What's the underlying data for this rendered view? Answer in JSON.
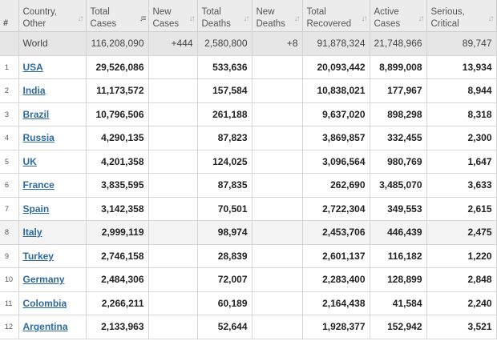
{
  "headers": {
    "num": "#",
    "country": [
      "Country,",
      "Other"
    ],
    "total_cases": [
      "Total",
      "Cases"
    ],
    "new_cases": [
      "New",
      "Cases"
    ],
    "total_deaths": [
      "Total",
      "Deaths"
    ],
    "new_deaths": [
      "New",
      "Deaths"
    ],
    "total_recovered": [
      "Total",
      "Recovered"
    ],
    "active_cases": [
      "Active",
      "Cases"
    ],
    "serious": [
      "Serious,",
      "Critical"
    ]
  },
  "world": {
    "country": "World",
    "total_cases": "116,208,090",
    "new_cases": "+444",
    "total_deaths": "2,580,800",
    "new_deaths": "+8",
    "total_recovered": "91,878,324",
    "active_cases": "21,748,966",
    "serious": "89,747"
  },
  "rows": [
    {
      "rank": "1",
      "country": "USA",
      "total_cases": "29,526,086",
      "new_cases": "",
      "total_deaths": "533,636",
      "new_deaths": "",
      "total_recovered": "20,093,442",
      "active_cases": "8,899,008",
      "serious": "13,934"
    },
    {
      "rank": "2",
      "country": "India",
      "total_cases": "11,173,572",
      "new_cases": "",
      "total_deaths": "157,584",
      "new_deaths": "",
      "total_recovered": "10,838,021",
      "active_cases": "177,967",
      "serious": "8,944"
    },
    {
      "rank": "3",
      "country": "Brazil",
      "total_cases": "10,796,506",
      "new_cases": "",
      "total_deaths": "261,188",
      "new_deaths": "",
      "total_recovered": "9,637,020",
      "active_cases": "898,298",
      "serious": "8,318"
    },
    {
      "rank": "4",
      "country": "Russia",
      "total_cases": "4,290,135",
      "new_cases": "",
      "total_deaths": "87,823",
      "new_deaths": "",
      "total_recovered": "3,869,857",
      "active_cases": "332,455",
      "serious": "2,300"
    },
    {
      "rank": "5",
      "country": "UK",
      "total_cases": "4,201,358",
      "new_cases": "",
      "total_deaths": "124,025",
      "new_deaths": "",
      "total_recovered": "3,096,564",
      "active_cases": "980,769",
      "serious": "1,647"
    },
    {
      "rank": "6",
      "country": "France",
      "total_cases": "3,835,595",
      "new_cases": "",
      "total_deaths": "87,835",
      "new_deaths": "",
      "total_recovered": "262,690",
      "active_cases": "3,485,070",
      "serious": "3,633"
    },
    {
      "rank": "7",
      "country": "Spain",
      "total_cases": "3,142,358",
      "new_cases": "",
      "total_deaths": "70,501",
      "new_deaths": "",
      "total_recovered": "2,722,304",
      "active_cases": "349,553",
      "serious": "2,615"
    },
    {
      "rank": "8",
      "country": "Italy",
      "total_cases": "2,999,119",
      "new_cases": "",
      "total_deaths": "98,974",
      "new_deaths": "",
      "total_recovered": "2,453,706",
      "active_cases": "446,439",
      "serious": "2,475"
    },
    {
      "rank": "9",
      "country": "Turkey",
      "total_cases": "2,746,158",
      "new_cases": "",
      "total_deaths": "28,839",
      "new_deaths": "",
      "total_recovered": "2,601,137",
      "active_cases": "116,182",
      "serious": "1,220"
    },
    {
      "rank": "10",
      "country": "Germany",
      "total_cases": "2,484,306",
      "new_cases": "",
      "total_deaths": "72,007",
      "new_deaths": "",
      "total_recovered": "2,283,400",
      "active_cases": "128,899",
      "serious": "2,848"
    },
    {
      "rank": "11",
      "country": "Colombia",
      "total_cases": "2,266,211",
      "new_cases": "",
      "total_deaths": "60,189",
      "new_deaths": "",
      "total_recovered": "2,164,438",
      "active_cases": "41,584",
      "serious": "2,240"
    },
    {
      "rank": "12",
      "country": "Argentina",
      "total_cases": "2,133,963",
      "new_cases": "",
      "total_deaths": "52,644",
      "new_deaths": "",
      "total_recovered": "1,928,377",
      "active_cases": "152,942",
      "serious": "3,521"
    }
  ]
}
